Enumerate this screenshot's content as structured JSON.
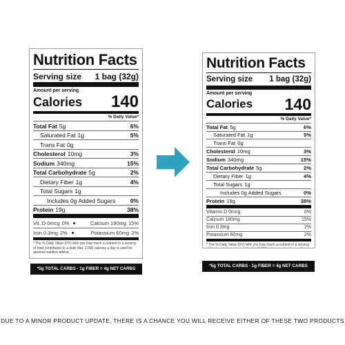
{
  "labels": [
    {
      "title": "Nutrition Facts",
      "serving_label": "Serving size",
      "serving_value": "1 bag (32g)",
      "amount_label": "Amount per serving",
      "calories_label": "Calories",
      "calories": "140",
      "dv_header": "% Daily Value*",
      "rows": [
        {
          "name": "Total Fat",
          "amount": "5g",
          "dv": "6%"
        },
        {
          "name": "Saturated Fat",
          "amount": "1g",
          "dv": "5%"
        },
        {
          "name": "Trans Fat",
          "amount": "0g"
        },
        {
          "name": "Cholesterol",
          "amount": "10mg",
          "dv": "3%"
        },
        {
          "name": "Sodium",
          "amount": "340mg",
          "dv": "15%"
        },
        {
          "name": "Total Carbohydrate",
          "amount": "5g",
          "dv": "2%"
        },
        {
          "name": "Dietary Fiber",
          "amount": "1g",
          "dv": "4%"
        },
        {
          "name": "Total Sugars",
          "amount": "1g"
        },
        {
          "name": "Includes 0g Added Sugars",
          "dv": "0%"
        },
        {
          "name": "Protein",
          "amount": "19g",
          "dv": "38%"
        }
      ],
      "vitamins": [
        [
          {
            "name": "Vit. D 0mcg",
            "dv": "0%"
          },
          {
            "name": "Calcium 180mg",
            "dv": "15%"
          }
        ],
        [
          {
            "name": "Iron 0.3mg",
            "dv": "2%"
          },
          {
            "name": "Potassium 60mg",
            "dv": "2%"
          }
        ]
      ],
      "footnote": "* The % Daily Value (DV) tells you how much a nutrient in a serving of food contributes to a daily diet. 2,000 calories a day is used for general nutrition advice.",
      "net_carbs": "*5g TOTAL CARBS - 1g FIBER = 4g NET CARBS"
    },
    {
      "title": "Nutrition Facts",
      "serving_label": "Serving size",
      "serving_value": "1 bag (32g)",
      "amount_label": "Amount per serving",
      "calories_label": "Calories",
      "calories": "140",
      "dv_header": "% Daily Value*",
      "rows": [
        {
          "name": "Total Fat",
          "amount": "5g",
          "dv": "6%"
        },
        {
          "name": "Saturated Fat",
          "amount": "1g",
          "dv": "5%"
        },
        {
          "name": "Trans Fat",
          "amount": "0g"
        },
        {
          "name": "Cholesterol",
          "amount": "10mg",
          "dv": "3%"
        },
        {
          "name": "Sodium",
          "amount": "340mg",
          "dv": "15%"
        },
        {
          "name": "Total Carbohydrate",
          "amount": "5g",
          "dv": "2%"
        },
        {
          "name": "Dietary Fiber",
          "amount": "1g",
          "dv": "4%"
        },
        {
          "name": "Total Sugars",
          "amount": "1g"
        },
        {
          "name": "Includes 0g Added Sugars",
          "dv": "0%"
        },
        {
          "name": "Protein",
          "amount": "19g",
          "dv": "38%"
        }
      ],
      "vitamins": [
        [
          {
            "name": "Vitamin D 0mcg",
            "dv": "0%"
          }
        ],
        [
          {
            "name": "Calcium 180mg",
            "dv": "15%"
          }
        ],
        [
          {
            "name": "Iron 0.3mg",
            "dv": "2%"
          }
        ],
        [
          {
            "name": "Potassium 60mg",
            "dv": "2%"
          }
        ]
      ],
      "footnote": "* The % Daily Value (DV) tells you how much a nutrient in a serving of food contributes to a daily diet. 2,000 calories a day is used for general nutrition advice.",
      "net_carbs": "*5g TOTAL CARBS - 1g FIBER = 4g NET CARBS"
    }
  ],
  "notice": "DUE TO A MINOR PRODUCT UPDATE, THERE IS A CHANCE YOU WILL RECEIVE EITHER OF THESE TWO PRODUCTS"
}
